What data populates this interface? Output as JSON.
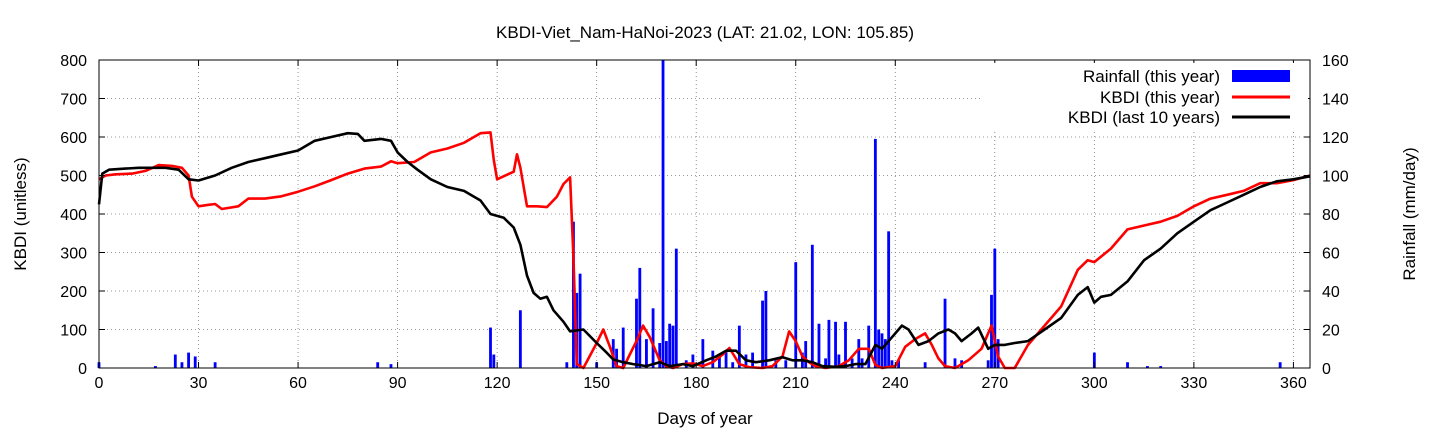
{
  "chart_data": {
    "type": "bar+line",
    "title": "KBDI-Viet_Nam-HaNoi-2023 (LAT: 21.02, LON: 105.85)",
    "xlabel": "Days of year",
    "ylabel_left": "KBDI (unitless)",
    "ylabel_right": "Rainfall (mm/day)",
    "xlim": [
      0,
      365
    ],
    "ylim_left": [
      0,
      800
    ],
    "ylim_right": [
      0,
      160
    ],
    "x_ticks": [
      0,
      30,
      60,
      90,
      120,
      150,
      180,
      210,
      240,
      270,
      300,
      330,
      360
    ],
    "y_ticks_left": [
      0,
      100,
      200,
      300,
      400,
      500,
      600,
      700,
      800
    ],
    "y_ticks_right": [
      0,
      20,
      40,
      60,
      80,
      100,
      120,
      140,
      160
    ],
    "grid": true,
    "legend_position": "top-right",
    "legend": [
      {
        "label": "Rainfall (this year)",
        "color": "#0000ff",
        "kind": "bar"
      },
      {
        "label": "KBDI (this year)",
        "color": "#ff0000",
        "kind": "line"
      },
      {
        "label": "KBDI (last 10 years)",
        "color": "#000000",
        "kind": "line"
      }
    ],
    "series": [
      {
        "name": "Rainfall (this year)",
        "axis": "right",
        "type": "bar",
        "color": "#0000ff",
        "points": [
          [
            0,
            3
          ],
          [
            17,
            1
          ],
          [
            23,
            7
          ],
          [
            25,
            3
          ],
          [
            27,
            8
          ],
          [
            29,
            6
          ],
          [
            35,
            3
          ],
          [
            84,
            3
          ],
          [
            88,
            2
          ],
          [
            118,
            21
          ],
          [
            119,
            7
          ],
          [
            127,
            30
          ],
          [
            141,
            3
          ],
          [
            143,
            76
          ],
          [
            144,
            39
          ],
          [
            145,
            49
          ],
          [
            150,
            3
          ],
          [
            155,
            15
          ],
          [
            156,
            10
          ],
          [
            158,
            21
          ],
          [
            162,
            36
          ],
          [
            163,
            52
          ],
          [
            165,
            15
          ],
          [
            167,
            31
          ],
          [
            169,
            13
          ],
          [
            170,
            160
          ],
          [
            171,
            14
          ],
          [
            172,
            23
          ],
          [
            173,
            22
          ],
          [
            174,
            62
          ],
          [
            177,
            4
          ],
          [
            179,
            7
          ],
          [
            182,
            15
          ],
          [
            185,
            9
          ],
          [
            187,
            7
          ],
          [
            189,
            9
          ],
          [
            191,
            3
          ],
          [
            193,
            22
          ],
          [
            195,
            7
          ],
          [
            197,
            8
          ],
          [
            200,
            35
          ],
          [
            201,
            40
          ],
          [
            204,
            4
          ],
          [
            207,
            4
          ],
          [
            210,
            55
          ],
          [
            212,
            8
          ],
          [
            213,
            14
          ],
          [
            215,
            64
          ],
          [
            217,
            23
          ],
          [
            219,
            5
          ],
          [
            220,
            25
          ],
          [
            222,
            24
          ],
          [
            223,
            7
          ],
          [
            225,
            24
          ],
          [
            227,
            5
          ],
          [
            229,
            15
          ],
          [
            230,
            5
          ],
          [
            232,
            22
          ],
          [
            234,
            119
          ],
          [
            235,
            20
          ],
          [
            236,
            18
          ],
          [
            237,
            15
          ],
          [
            238,
            71
          ],
          [
            239,
            4
          ],
          [
            241,
            4
          ],
          [
            249,
            3
          ],
          [
            255,
            36
          ],
          [
            258,
            5
          ],
          [
            260,
            4
          ],
          [
            268,
            4
          ],
          [
            269,
            38
          ],
          [
            270,
            62
          ],
          [
            271,
            15
          ],
          [
            300,
            8
          ],
          [
            310,
            3
          ],
          [
            316,
            1
          ],
          [
            320,
            1
          ],
          [
            356,
            3
          ]
        ]
      },
      {
        "name": "KBDI (this year)",
        "axis": "left",
        "type": "line",
        "color": "#ff0000",
        "points": [
          [
            0,
            490
          ],
          [
            2,
            500
          ],
          [
            5,
            503
          ],
          [
            10,
            505
          ],
          [
            14,
            512
          ],
          [
            18,
            527
          ],
          [
            22,
            525
          ],
          [
            25,
            520
          ],
          [
            27,
            500
          ],
          [
            28,
            445
          ],
          [
            30,
            420
          ],
          [
            33,
            424
          ],
          [
            35,
            426
          ],
          [
            37,
            413
          ],
          [
            42,
            420
          ],
          [
            45,
            440
          ],
          [
            50,
            440
          ],
          [
            55,
            446
          ],
          [
            60,
            458
          ],
          [
            65,
            472
          ],
          [
            70,
            488
          ],
          [
            75,
            505
          ],
          [
            80,
            518
          ],
          [
            85,
            523
          ],
          [
            88,
            537
          ],
          [
            90,
            532
          ],
          [
            95,
            535
          ],
          [
            100,
            560
          ],
          [
            105,
            570
          ],
          [
            110,
            585
          ],
          [
            115,
            610
          ],
          [
            118,
            612
          ],
          [
            119,
            540
          ],
          [
            120,
            490
          ],
          [
            125,
            510
          ],
          [
            126,
            555
          ],
          [
            127,
            520
          ],
          [
            129,
            420
          ],
          [
            132,
            420
          ],
          [
            135,
            418
          ],
          [
            138,
            445
          ],
          [
            140,
            478
          ],
          [
            142,
            495
          ],
          [
            143,
            290
          ],
          [
            144,
            10
          ],
          [
            146,
            0
          ],
          [
            150,
            65
          ],
          [
            152,
            100
          ],
          [
            154,
            55
          ],
          [
            156,
            5
          ],
          [
            158,
            0
          ],
          [
            160,
            35
          ],
          [
            162,
            70
          ],
          [
            164,
            110
          ],
          [
            166,
            80
          ],
          [
            169,
            20
          ],
          [
            171,
            5
          ],
          [
            173,
            0
          ],
          [
            176,
            10
          ],
          [
            179,
            12
          ],
          [
            182,
            5
          ],
          [
            185,
            15
          ],
          [
            188,
            35
          ],
          [
            190,
            52
          ],
          [
            193,
            10
          ],
          [
            196,
            2
          ],
          [
            200,
            0
          ],
          [
            203,
            5
          ],
          [
            206,
            30
          ],
          [
            208,
            95
          ],
          [
            210,
            70
          ],
          [
            212,
            30
          ],
          [
            214,
            15
          ],
          [
            216,
            5
          ],
          [
            219,
            0
          ],
          [
            223,
            5
          ],
          [
            226,
            20
          ],
          [
            229,
            50
          ],
          [
            232,
            50
          ],
          [
            234,
            8
          ],
          [
            236,
            0
          ],
          [
            240,
            5
          ],
          [
            243,
            55
          ],
          [
            246,
            75
          ],
          [
            249,
            90
          ],
          [
            251,
            60
          ],
          [
            253,
            25
          ],
          [
            255,
            5
          ],
          [
            258,
            0
          ],
          [
            262,
            20
          ],
          [
            266,
            50
          ],
          [
            269,
            110
          ],
          [
            271,
            30
          ],
          [
            273,
            0
          ],
          [
            276,
            0
          ],
          [
            280,
            60
          ],
          [
            285,
            110
          ],
          [
            290,
            160
          ],
          [
            295,
            255
          ],
          [
            298,
            280
          ],
          [
            300,
            275
          ],
          [
            305,
            310
          ],
          [
            310,
            360
          ],
          [
            315,
            370
          ],
          [
            320,
            380
          ],
          [
            325,
            395
          ],
          [
            330,
            420
          ],
          [
            335,
            440
          ],
          [
            340,
            450
          ],
          [
            345,
            460
          ],
          [
            350,
            480
          ],
          [
            355,
            480
          ],
          [
            360,
            488
          ],
          [
            365,
            500
          ]
        ]
      },
      {
        "name": "KBDI (last 10 years)",
        "axis": "left",
        "type": "line",
        "color": "#000000",
        "points": [
          [
            0,
            425
          ],
          [
            1,
            505
          ],
          [
            3,
            515
          ],
          [
            8,
            518
          ],
          [
            12,
            520
          ],
          [
            15,
            520
          ],
          [
            20,
            520
          ],
          [
            24,
            515
          ],
          [
            27,
            490
          ],
          [
            30,
            487
          ],
          [
            35,
            500
          ],
          [
            40,
            520
          ],
          [
            45,
            535
          ],
          [
            50,
            545
          ],
          [
            55,
            555
          ],
          [
            60,
            565
          ],
          [
            65,
            590
          ],
          [
            70,
            600
          ],
          [
            75,
            610
          ],
          [
            78,
            608
          ],
          [
            80,
            590
          ],
          [
            85,
            595
          ],
          [
            88,
            590
          ],
          [
            90,
            560
          ],
          [
            93,
            535
          ],
          [
            96,
            515
          ],
          [
            100,
            490
          ],
          [
            105,
            470
          ],
          [
            110,
            460
          ],
          [
            115,
            435
          ],
          [
            118,
            400
          ],
          [
            122,
            390
          ],
          [
            125,
            365
          ],
          [
            127,
            320
          ],
          [
            129,
            240
          ],
          [
            131,
            195
          ],
          [
            133,
            180
          ],
          [
            135,
            185
          ],
          [
            137,
            150
          ],
          [
            140,
            120
          ],
          [
            142,
            95
          ],
          [
            146,
            100
          ],
          [
            150,
            65
          ],
          [
            153,
            40
          ],
          [
            155,
            22
          ],
          [
            158,
            15
          ],
          [
            161,
            10
          ],
          [
            165,
            5
          ],
          [
            169,
            15
          ],
          [
            172,
            5
          ],
          [
            176,
            10
          ],
          [
            179,
            5
          ],
          [
            183,
            20
          ],
          [
            186,
            30
          ],
          [
            189,
            45
          ],
          [
            192,
            45
          ],
          [
            195,
            20
          ],
          [
            198,
            15
          ],
          [
            202,
            20
          ],
          [
            206,
            28
          ],
          [
            209,
            20
          ],
          [
            212,
            20
          ],
          [
            215,
            15
          ],
          [
            218,
            5
          ],
          [
            222,
            3
          ],
          [
            225,
            5
          ],
          [
            228,
            10
          ],
          [
            231,
            10
          ],
          [
            234,
            60
          ],
          [
            236,
            50
          ],
          [
            239,
            80
          ],
          [
            242,
            110
          ],
          [
            244,
            100
          ],
          [
            247,
            60
          ],
          [
            250,
            70
          ],
          [
            253,
            90
          ],
          [
            256,
            100
          ],
          [
            258,
            90
          ],
          [
            260,
            70
          ],
          [
            263,
            90
          ],
          [
            265,
            105
          ],
          [
            268,
            50
          ],
          [
            270,
            60
          ],
          [
            273,
            60
          ],
          [
            276,
            65
          ],
          [
            280,
            70
          ],
          [
            285,
            100
          ],
          [
            290,
            130
          ],
          [
            295,
            190
          ],
          [
            298,
            210
          ],
          [
            300,
            170
          ],
          [
            302,
            185
          ],
          [
            305,
            190
          ],
          [
            310,
            225
          ],
          [
            315,
            280
          ],
          [
            320,
            310
          ],
          [
            325,
            350
          ],
          [
            330,
            380
          ],
          [
            335,
            410
          ],
          [
            340,
            430
          ],
          [
            345,
            450
          ],
          [
            350,
            470
          ],
          [
            355,
            485
          ],
          [
            360,
            490
          ],
          [
            365,
            498
          ]
        ]
      }
    ]
  }
}
